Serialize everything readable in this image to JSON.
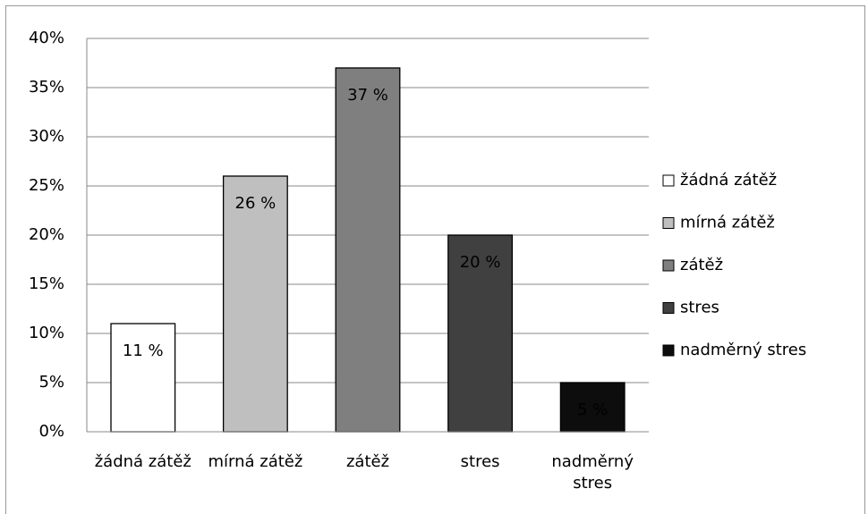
{
  "chart_data": {
    "type": "bar",
    "categories": [
      "žádná zátěž",
      "mírná zátěž",
      "zátěž",
      "stres",
      "nadměrný stres"
    ],
    "values": [
      11,
      26,
      37,
      20,
      5
    ],
    "value_labels": [
      "11 %",
      "26 %",
      "37 %",
      "20 %",
      "5 %"
    ],
    "colors": [
      "#ffffff",
      "#bfbfbf",
      "#7f7f7f",
      "#404040",
      "#0d0d0d"
    ],
    "ylim": [
      0,
      40
    ],
    "yticks": [
      {
        "value": 0,
        "label": "0%"
      },
      {
        "value": 5,
        "label": "5%"
      },
      {
        "value": 10,
        "label": "10%"
      },
      {
        "value": 15,
        "label": "15%"
      },
      {
        "value": 20,
        "label": "20%"
      },
      {
        "value": 25,
        "label": "25%"
      },
      {
        "value": 30,
        "label": "30%"
      },
      {
        "value": 35,
        "label": "35%"
      },
      {
        "value": 40,
        "label": "40%"
      }
    ],
    "grid": true,
    "legend": "right"
  }
}
